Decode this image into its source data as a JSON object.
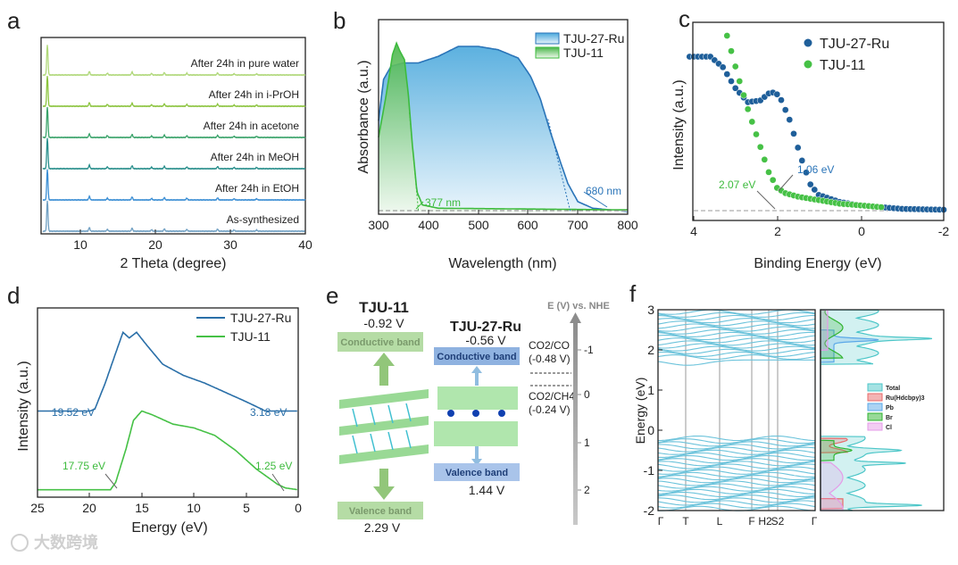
{
  "watermark": "大数跨境",
  "chart_data": [
    {
      "panel": "a",
      "type": "line",
      "xlabel": "2 Theta (degree)",
      "ylabel": "",
      "xlim": [
        5,
        40
      ],
      "xticks": [
        "10",
        "20",
        "30",
        "40"
      ],
      "series": [
        {
          "name": "As-synthesized",
          "color": "#6f9fc2"
        },
        {
          "name": "After 24h in EtOH",
          "color": "#3b8ed4"
        },
        {
          "name": "After 24h in MeOH",
          "color": "#2a8f8c"
        },
        {
          "name": "After 24h in acetone",
          "color": "#3aa36a"
        },
        {
          "name": "After 24h in i-PrOH",
          "color": "#8cc43f"
        },
        {
          "name": "After 24h in pure water",
          "color": "#b0d87a"
        }
      ],
      "peaks": [
        [
          5.6,
          1.0
        ],
        [
          11.2,
          0.12
        ],
        [
          13.6,
          0.06
        ],
        [
          16.9,
          0.1
        ],
        [
          19.5,
          0.05
        ],
        [
          21.2,
          0.08
        ],
        [
          24.2,
          0.06
        ],
        [
          28.3,
          0.07
        ],
        [
          30.5,
          0.04
        ],
        [
          33.5,
          0.04
        ]
      ]
    },
    {
      "panel": "b",
      "type": "area",
      "xlabel": "Wavelength (nm)",
      "ylabel": "Absorbance (a.u.)",
      "xlim": [
        300,
        800
      ],
      "xticks": [
        "300",
        "400",
        "500",
        "600",
        "700",
        "800"
      ],
      "legend": "top-right",
      "series": [
        {
          "name": "TJU-27-Ru",
          "color": "#2a74b8",
          "points": [
            [
              300,
              0.55
            ],
            [
              310,
              0.8
            ],
            [
              325,
              0.88
            ],
            [
              350,
              0.9
            ],
            [
              380,
              0.9
            ],
            [
              420,
              0.94
            ],
            [
              460,
              1.0
            ],
            [
              500,
              1.0
            ],
            [
              540,
              0.98
            ],
            [
              580,
              0.93
            ],
            [
              605,
              0.82
            ],
            [
              625,
              0.68
            ],
            [
              645,
              0.48
            ],
            [
              665,
              0.3
            ],
            [
              680,
              0.17
            ],
            [
              700,
              0.06
            ],
            [
              730,
              0.02
            ],
            [
              800,
              0.0
            ]
          ]
        },
        {
          "name": "TJU-11",
          "color": "#3dbb3d",
          "points": [
            [
              300,
              0.45
            ],
            [
              315,
              0.7
            ],
            [
              328,
              0.95
            ],
            [
              336,
              1.02
            ],
            [
              343,
              0.97
            ],
            [
              352,
              0.92
            ],
            [
              360,
              0.7
            ],
            [
              368,
              0.4
            ],
            [
              377,
              0.12
            ],
            [
              388,
              0.04
            ],
            [
              420,
              0.02
            ],
            [
              800,
              0.01
            ]
          ]
        }
      ],
      "annotations": [
        {
          "text": "377 nm",
          "x": 377,
          "color": "#3dbb3d"
        },
        {
          "text": "680 nm",
          "x": 680,
          "color": "#2a74b8"
        }
      ]
    },
    {
      "panel": "c",
      "type": "scatter",
      "xlabel": "Binding Energy (eV)",
      "ylabel": "Intensity (a.u.)",
      "xlim": [
        4,
        -2
      ],
      "xticks": [
        "4",
        "2",
        "0",
        "-2"
      ],
      "legend": "top-right",
      "series": [
        {
          "name": "TJU-27-Ru",
          "color": "#1f5f9a",
          "points": [
            [
              4.1,
              0.88
            ],
            [
              3.6,
              0.88
            ],
            [
              3.3,
              0.82
            ],
            [
              3.0,
              0.7
            ],
            [
              2.7,
              0.62
            ],
            [
              2.4,
              0.63
            ],
            [
              2.15,
              0.68
            ],
            [
              1.95,
              0.66
            ],
            [
              1.7,
              0.52
            ],
            [
              1.45,
              0.32
            ],
            [
              1.2,
              0.15
            ],
            [
              1.0,
              0.09
            ],
            [
              0.5,
              0.05
            ],
            [
              0,
              0.03
            ],
            [
              -1,
              0.01
            ],
            [
              -2,
              0.005
            ]
          ]
        },
        {
          "name": "TJU-11",
          "color": "#46c146",
          "points": [
            [
              3.2,
              1.0
            ],
            [
              2.95,
              0.78
            ],
            [
              2.7,
              0.58
            ],
            [
              2.45,
              0.4
            ],
            [
              2.2,
              0.22
            ],
            [
              2.0,
              0.13
            ],
            [
              1.8,
              0.1
            ],
            [
              1.5,
              0.08
            ],
            [
              1.0,
              0.06
            ],
            [
              0.5,
              0.04
            ],
            [
              0,
              0.03
            ],
            [
              -0.5,
              0.02
            ]
          ]
        }
      ],
      "annotations": [
        {
          "text": "2.07 eV",
          "x": 2.07,
          "color": "#3dbb3d"
        },
        {
          "text": "1.06 eV",
          "x": 1.06,
          "color": "#2a74b8"
        }
      ]
    },
    {
      "panel": "d",
      "type": "line",
      "xlabel": "Energy (eV)",
      "ylabel": "Intensity (a.u.)",
      "xlim": [
        25,
        0
      ],
      "xticks": [
        "25",
        "20",
        "15",
        "10",
        "5",
        "0"
      ],
      "legend": "top-right",
      "series": [
        {
          "name": "TJU-27-Ru",
          "color": "#2a6fa8",
          "points": [
            [
              25,
              0.45
            ],
            [
              20,
              0.45
            ],
            [
              19.5,
              0.46
            ],
            [
              18.5,
              0.6
            ],
            [
              17.5,
              0.76
            ],
            [
              16.8,
              0.87
            ],
            [
              16.2,
              0.84
            ],
            [
              15.5,
              0.87
            ],
            [
              14.5,
              0.8
            ],
            [
              13,
              0.7
            ],
            [
              11,
              0.64
            ],
            [
              9,
              0.6
            ],
            [
              7,
              0.55
            ],
            [
              5,
              0.5
            ],
            [
              3.5,
              0.46
            ],
            [
              3.18,
              0.45
            ],
            [
              0,
              0.45
            ]
          ]
        },
        {
          "name": "TJU-11",
          "color": "#46c146",
          "points": [
            [
              25,
              0.03
            ],
            [
              18,
              0.03
            ],
            [
              17.5,
              0.07
            ],
            [
              16.5,
              0.25
            ],
            [
              15.8,
              0.4
            ],
            [
              15,
              0.45
            ],
            [
              14,
              0.43
            ],
            [
              12,
              0.38
            ],
            [
              10,
              0.36
            ],
            [
              8,
              0.32
            ],
            [
              6,
              0.24
            ],
            [
              4,
              0.14
            ],
            [
              2,
              0.06
            ],
            [
              1.25,
              0.04
            ],
            [
              0,
              0.03
            ]
          ]
        }
      ],
      "annotations": [
        {
          "text": "19.52 eV",
          "color": "#2a6fa8"
        },
        {
          "text": "3.18 eV",
          "color": "#2a6fa8"
        },
        {
          "text": "17.75 eV",
          "color": "#3dbb3d"
        },
        {
          "text": "1.25 eV",
          "color": "#3dbb3d"
        }
      ]
    },
    {
      "panel": "e",
      "type": "diagram",
      "axis_title": "E (V) vs. NHE",
      "axis_ticks": [
        "-1",
        "0",
        "1",
        "2"
      ],
      "materials": [
        {
          "name": "TJU-11",
          "cb": "-0.92 V",
          "cb_label": "Conductive band",
          "vb": "2.29 V",
          "vb_label": "Valence band"
        },
        {
          "name": "TJU-27-Ru",
          "cb": "-0.56 V",
          "cb_label": "Conductive band",
          "vb": "1.44 V",
          "vb_label": "Valence band"
        }
      ],
      "redox": [
        {
          "couple": "CO2/CO",
          "potential": "(-0.48 V)"
        },
        {
          "couple": "CO2/CH4",
          "potential": "(-0.24 V)"
        }
      ]
    },
    {
      "panel": "f",
      "type": "line",
      "ylabel": "Energy (eV)",
      "ylim": [
        -2,
        3
      ],
      "yticks": [
        "3",
        "2",
        "1",
        "0",
        "-1",
        "-2"
      ],
      "kpoints": [
        "Γ",
        "T",
        "L",
        "F",
        "H2",
        "S2",
        "Γ"
      ],
      "dos_legend": [
        "Total",
        "Ru(Hdcbpy)3",
        "Pb",
        "Br",
        "Cl"
      ],
      "dos_colors": [
        "#4cc6c8",
        "#e86a6a",
        "#5aa8e8",
        "#2fb32f",
        "#e59be8"
      ],
      "band_color": "#6cc3db"
    }
  ]
}
